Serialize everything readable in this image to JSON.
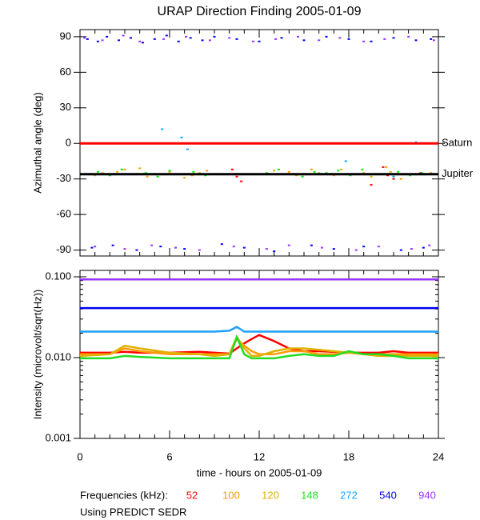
{
  "title": "URAP Direction Finding  2005-01-09",
  "footnote": "Using PREDICT SEDR",
  "chart_data": [
    {
      "type": "scatter",
      "ylabel": "Azimuthal angle (deg)",
      "xlim": [
        0,
        24
      ],
      "xticks": [
        0,
        6,
        12,
        18,
        24
      ],
      "ylim": [
        -95,
        96
      ],
      "yticks": [
        90,
        60,
        30,
        0,
        -30,
        -60,
        -90
      ],
      "reference_lines": [
        {
          "name": "Saturn",
          "value": 0,
          "color": "#ff0000"
        },
        {
          "name": "Jupiter",
          "value": -26,
          "color": "#000000"
        }
      ],
      "series": [
        {
          "color": "#ff0000",
          "x": [
            10.2,
            10.5,
            10.8,
            19.5,
            20.3,
            20.6,
            21.0,
            22.8
          ],
          "values": [
            -22,
            -28,
            -32,
            -35,
            -20,
            -27,
            -30,
            -25
          ]
        },
        {
          "color": "#ff9900",
          "x": [
            1.5,
            3,
            4.5,
            6,
            7.5,
            8.5,
            12.5,
            14,
            15.5,
            17,
            19,
            20.5,
            21.5,
            23.5
          ],
          "values": [
            -25,
            -22,
            -28,
            -24,
            -27,
            -23,
            -26,
            -24,
            -22,
            -27,
            -25,
            -20,
            -30,
            -25
          ]
        },
        {
          "color": "#e0b000",
          "x": [
            1,
            2.5,
            4,
            5.5,
            7,
            8,
            13,
            14.5,
            16,
            17.5,
            19.5,
            20.8,
            23
          ],
          "values": [
            -27,
            -24,
            -21,
            -26,
            -29,
            -25,
            -23,
            -27,
            -25,
            -22,
            -28,
            -24,
            -26
          ]
        },
        {
          "color": "#00ee00",
          "x": [
            1.2,
            2,
            2.8,
            3.6,
            4.4,
            5.2,
            6,
            6.8,
            7.6,
            8.4,
            12.5,
            13.3,
            14.1,
            14.9,
            15.7,
            16.5,
            17.3,
            18.1,
            18.9,
            19.7,
            21.3,
            22.1,
            22.9
          ],
          "values": [
            -24,
            -27,
            -22,
            -26,
            -25,
            -28,
            -23,
            -26,
            -24,
            -27,
            -25,
            -22,
            -26,
            -28,
            -24,
            -25,
            -23,
            -27,
            -22,
            -26,
            -24,
            -27,
            -25
          ]
        },
        {
          "color": "#00aaff",
          "x": [
            5.5,
            6.8,
            7.2,
            17.8,
            21,
            22.5
          ],
          "values": [
            12,
            5,
            -5,
            -15,
            -28,
            1
          ]
        },
        {
          "color": "#0000ff",
          "x": [
            0.5,
            1.2,
            1.8,
            2.6,
            3.4,
            4.2,
            5.0,
            5.8,
            6.6,
            7.4,
            8.2,
            9.0,
            10.5,
            12,
            13.5,
            15,
            16.5,
            18,
            19.5,
            21,
            22.5,
            23.5,
            0.8,
            2.2,
            3.8,
            5.4,
            7,
            9.5,
            11,
            13,
            15.5,
            17,
            19,
            21.5,
            23
          ],
          "values": [
            88,
            86,
            90,
            87,
            89,
            85,
            88,
            91,
            86,
            89,
            87,
            90,
            88,
            86,
            89,
            87,
            90,
            88,
            86,
            89,
            87,
            88,
            -88,
            -86,
            -90,
            -87,
            -89,
            -85,
            -88,
            -91,
            -86,
            -89,
            -87,
            -90,
            -88
          ]
        },
        {
          "color": "#9933ff",
          "x": [
            0.3,
            1.5,
            2.9,
            4.0,
            5.6,
            7.1,
            8.7,
            10,
            11.6,
            13.1,
            14.6,
            16,
            17.4,
            19,
            20.4,
            22,
            23.7,
            1,
            3,
            4.8,
            6.4,
            8,
            10.3,
            12.5,
            14,
            16.2,
            18.5,
            20,
            22.2,
            23.4
          ],
          "values": [
            89,
            87,
            91,
            86,
            88,
            90,
            87,
            89,
            86,
            88,
            90,
            87,
            89,
            86,
            88,
            90,
            87,
            -87,
            -89,
            -86,
            -88,
            -90,
            -87,
            -89,
            -86,
            -88,
            -90,
            -87,
            -89,
            -86
          ]
        }
      ]
    },
    {
      "type": "line",
      "ylabel": "Intensity (microvolt/sqrt(Hz))",
      "xlabel": "time - hours on 2005-01-09",
      "legend_title": "Frequencies (kHz):",
      "log_scale": true,
      "xlim": [
        0,
        24
      ],
      "xticks": [
        0,
        6,
        12,
        18,
        24
      ],
      "ylim": [
        0.001,
        0.12
      ],
      "yticks": [
        {
          "value": 0.1,
          "label": "0.100"
        },
        {
          "value": 0.01,
          "label": "0.010"
        },
        {
          "value": 0.001,
          "label": "0.001"
        }
      ],
      "x": [
        0,
        2,
        3,
        4,
        6,
        8,
        9,
        10,
        10.5,
        11,
        11.5,
        12,
        13,
        14,
        15,
        16,
        17,
        18,
        19,
        20,
        21,
        22,
        24
      ],
      "series": [
        {
          "name": "52",
          "color": "#ff0000",
          "values": [
            0.0115,
            0.0115,
            0.0118,
            0.0115,
            0.0115,
            0.0118,
            0.0115,
            0.0112,
            0.013,
            0.015,
            0.017,
            0.019,
            0.016,
            0.013,
            0.012,
            0.012,
            0.0118,
            0.0115,
            0.0115,
            0.0115,
            0.012,
            0.0115,
            0.0115
          ]
        },
        {
          "name": "100",
          "color": "#ff9900",
          "values": [
            0.011,
            0.011,
            0.013,
            0.012,
            0.011,
            0.011,
            0.011,
            0.011,
            0.017,
            0.014,
            0.012,
            0.011,
            0.011,
            0.012,
            0.012,
            0.011,
            0.011,
            0.0115,
            0.011,
            0.011,
            0.011,
            0.011,
            0.011
          ]
        },
        {
          "name": "120",
          "color": "#e0b000",
          "values": [
            0.0105,
            0.011,
            0.014,
            0.013,
            0.0115,
            0.011,
            0.0105,
            0.011,
            0.018,
            0.013,
            0.0105,
            0.0105,
            0.012,
            0.013,
            0.013,
            0.0125,
            0.012,
            0.0115,
            0.011,
            0.0105,
            0.0105,
            0.0105,
            0.0105
          ]
        },
        {
          "name": "148",
          "color": "#22dd22",
          "values": [
            0.0098,
            0.0098,
            0.0105,
            0.0102,
            0.0098,
            0.0098,
            0.0098,
            0.0098,
            0.018,
            0.011,
            0.0098,
            0.0098,
            0.0098,
            0.0105,
            0.011,
            0.0105,
            0.0105,
            0.012,
            0.011,
            0.011,
            0.0105,
            0.0098,
            0.0098
          ]
        },
        {
          "name": "272",
          "color": "#1fa0ff",
          "values": [
            0.021,
            0.021,
            0.021,
            0.021,
            0.021,
            0.021,
            0.021,
            0.0215,
            0.024,
            0.021,
            0.021,
            0.021,
            0.021,
            0.021,
            0.021,
            0.021,
            0.021,
            0.021,
            0.021,
            0.021,
            0.021,
            0.021,
            0.021
          ]
        },
        {
          "name": "540",
          "color": "#0000ee",
          "values": [
            0.041,
            0.041,
            0.041,
            0.041,
            0.041,
            0.041,
            0.041,
            0.041,
            0.041,
            0.041,
            0.041,
            0.041,
            0.041,
            0.041,
            0.041,
            0.041,
            0.041,
            0.041,
            0.041,
            0.041,
            0.041,
            0.041,
            0.041
          ]
        },
        {
          "name": "940",
          "color": "#9933ff",
          "values": [
            0.093,
            0.093,
            0.093,
            0.093,
            0.093,
            0.093,
            0.093,
            0.093,
            0.093,
            0.093,
            0.093,
            0.093,
            0.093,
            0.093,
            0.093,
            0.093,
            0.093,
            0.093,
            0.093,
            0.093,
            0.093,
            0.093,
            0.093
          ]
        }
      ]
    }
  ]
}
